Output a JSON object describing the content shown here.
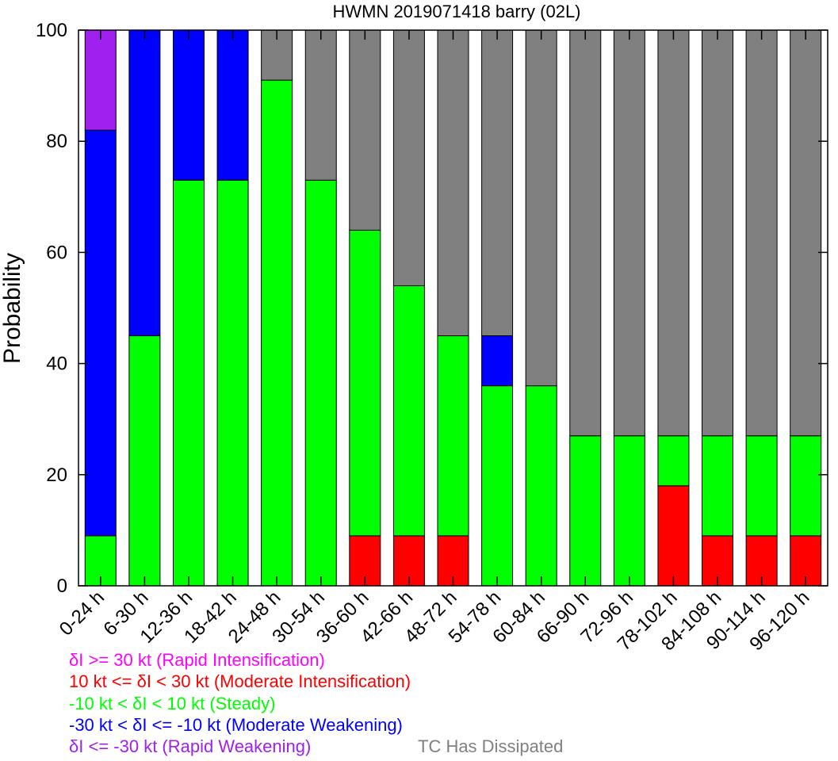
{
  "chart_data": {
    "type": "bar",
    "stacked": true,
    "title": "HWMN 2019071418 barry (02L)",
    "xlabel": "",
    "ylabel": "Probability",
    "ylim": [
      0,
      100
    ],
    "yticks": [
      0,
      20,
      40,
      60,
      80,
      100
    ],
    "grid": false,
    "categories": [
      "0-24 h",
      "6-30 h",
      "12-36 h",
      "18-42 h",
      "24-48 h",
      "30-54 h",
      "36-60 h",
      "42-66 h",
      "48-72 h",
      "54-78 h",
      "60-84 h",
      "66-90 h",
      "72-96 h",
      "78-102 h",
      "84-108 h",
      "90-114 h",
      "96-120 h"
    ],
    "series": [
      {
        "name": "10 kt <= δI < 30 kt (Moderate Intensification)",
        "color": "#ff0000",
        "values": [
          0,
          0,
          0,
          0,
          0,
          0,
          9,
          9,
          9,
          0,
          0,
          0,
          0,
          18,
          9,
          9,
          9
        ]
      },
      {
        "name": "-10 kt < δI < 10 kt (Steady)",
        "color": "#00ff00",
        "values": [
          9,
          45,
          73,
          73,
          91,
          73,
          55,
          45,
          36,
          36,
          36,
          27,
          27,
          9,
          18,
          18,
          18
        ]
      },
      {
        "name": "-30 kt < δI <= -10 kt (Moderate Weakening)",
        "color": "#0000ff",
        "values": [
          73,
          55,
          27,
          27,
          0,
          0,
          0,
          0,
          0,
          9,
          0,
          0,
          0,
          0,
          0,
          0,
          0
        ]
      },
      {
        "name": "δI <= -30 kt (Rapid Weakening)",
        "color": "#a020f0",
        "values": [
          18,
          0,
          0,
          0,
          0,
          0,
          0,
          0,
          0,
          0,
          0,
          0,
          0,
          0,
          0,
          0,
          0
        ]
      },
      {
        "name": "TC Has Dissipated",
        "color": "#808080",
        "values": [
          0,
          0,
          0,
          0,
          9,
          27,
          36,
          46,
          55,
          55,
          64,
          73,
          73,
          73,
          73,
          73,
          73
        ]
      },
      {
        "name": "δI >= 30 kt (Rapid Intensification)",
        "color": "#ff00ff",
        "values": [
          0,
          0,
          0,
          0,
          0,
          0,
          0,
          0,
          0,
          0,
          0,
          0,
          0,
          0,
          0,
          0,
          0
        ]
      }
    ],
    "legend": [
      {
        "text": "δI >= 30 kt (Rapid Intensification)",
        "color": "#ff00ff"
      },
      {
        "text": "10 kt <= δI < 30 kt (Moderate Intensification)",
        "color": "#ff0000"
      },
      {
        "text": "-10 kt < δI < 10 kt (Steady)",
        "color": "#00ff00"
      },
      {
        "text": "-30 kt < δI <= -10 kt (Moderate Weakening)",
        "color": "#0000ff"
      },
      {
        "text": "δI <= -30 kt (Rapid Weakening)",
        "color": "#a020f0"
      },
      {
        "text": "TC Has Dissipated",
        "color": "#808080"
      }
    ],
    "legend_position": "bottom-left"
  }
}
